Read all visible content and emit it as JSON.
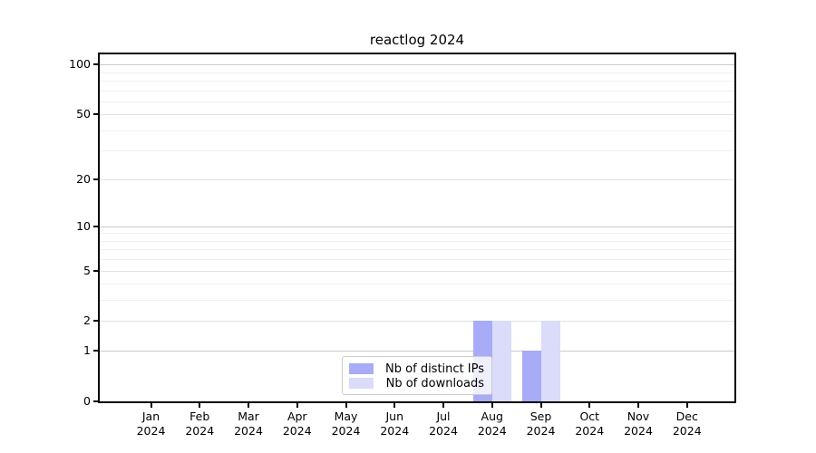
{
  "chart_data": {
    "type": "bar",
    "title": "reactlog 2024",
    "categories": [
      "Jan",
      "Feb",
      "Mar",
      "Apr",
      "May",
      "Jun",
      "Jul",
      "Aug",
      "Sep",
      "Oct",
      "Nov",
      "Dec"
    ],
    "year_label": "2024",
    "series": [
      {
        "name": "Nb of distinct IPs",
        "color": "#a8abf6",
        "values": [
          0,
          0,
          0,
          0,
          0,
          0,
          0,
          2,
          1,
          0,
          0,
          0
        ]
      },
      {
        "name": "Nb of downloads",
        "color": "#dadcf9",
        "values": [
          0,
          0,
          0,
          0,
          0,
          0,
          0,
          2,
          2,
          0,
          0,
          0
        ]
      }
    ],
    "yscale": "log1p",
    "ylim": [
      0,
      115
    ],
    "y_ticks": [
      0,
      1,
      2,
      5,
      10,
      20,
      50,
      100
    ],
    "y_decade_gridlines": [
      1,
      10,
      100
    ],
    "y_submajor_gridlines": [
      2,
      5,
      20,
      50
    ],
    "y_minor_gridlines": [
      3,
      4,
      6,
      7,
      8,
      9,
      30,
      40,
      60,
      70,
      80,
      90
    ],
    "grid": true,
    "legend_position": "lower center"
  },
  "colors": {
    "background": "#ffffff",
    "spine": "#000000",
    "grid_decade": "#c9c9c9",
    "grid_submajor": "#e2e2e2",
    "grid_minor": "#f0f0f0",
    "legend_border": "#cccccc"
  }
}
